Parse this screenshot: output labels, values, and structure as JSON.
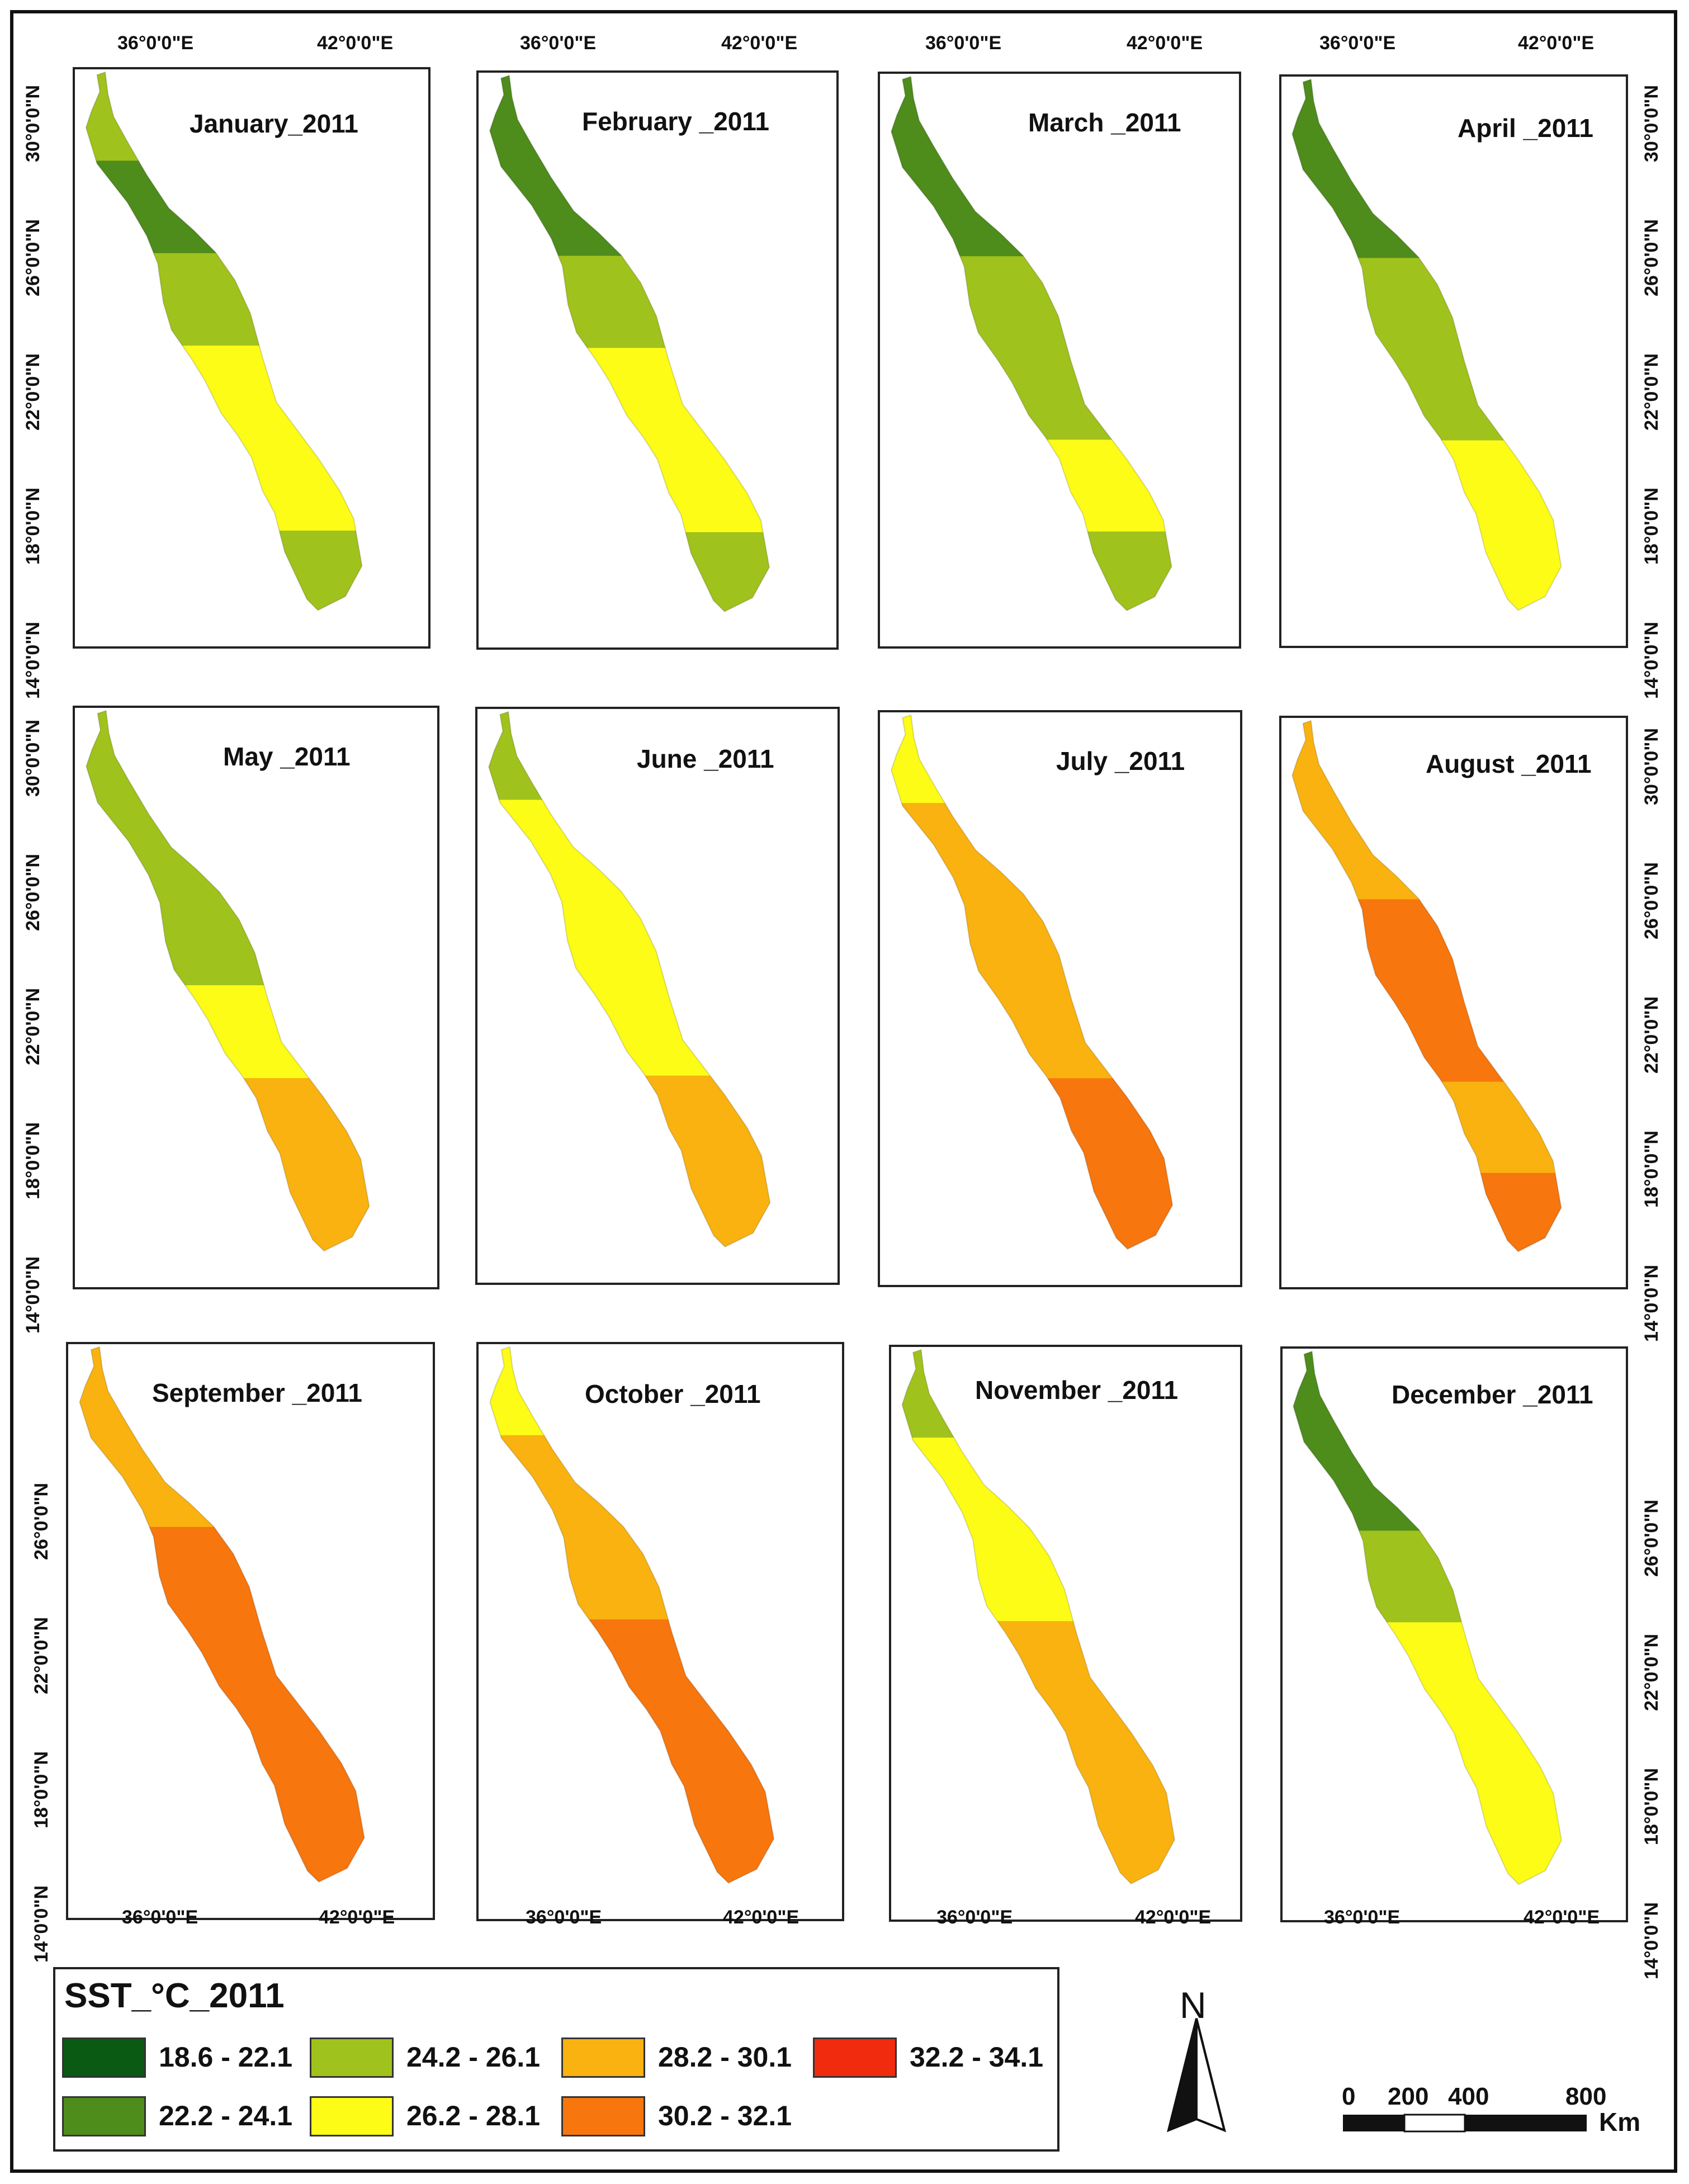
{
  "panels": [
    {
      "title": "January_2011"
    },
    {
      "title": "February _2011"
    },
    {
      "title": "March _2011"
    },
    {
      "title": "April _2011"
    },
    {
      "title": "May _2011"
    },
    {
      "title": "June _2011"
    },
    {
      "title": "July _2011"
    },
    {
      "title": "August _2011"
    },
    {
      "title": "September _2011"
    },
    {
      "title": "October _2011"
    },
    {
      "title": "November _2011"
    },
    {
      "title": "December _2011"
    }
  ],
  "axes": {
    "lon_labels": [
      "36°0'0\"E",
      "42°0'0\"E"
    ],
    "lat_labels_rows12": [
      "30°0'0\"N",
      "26°0'0\"N",
      "22°0'0\"N",
      "18°0'0\"N",
      "14°0'0\"N"
    ],
    "lat_labels_row3": [
      "26°0'0\"N",
      "22°0'0\"N",
      "18°0'0\"N",
      "14°0'0\"N"
    ]
  },
  "legend": {
    "title": "SST_°C_2011",
    "classes": [
      {
        "range": "18.6 - 22.1",
        "color": "#0b5a14"
      },
      {
        "range": "22.2 - 24.1",
        "color": "#4e8c1c"
      },
      {
        "range": "24.2 - 26.1",
        "color": "#a0c21c"
      },
      {
        "range": "26.2 - 28.1",
        "color": "#fcfc17"
      },
      {
        "range": "28.2 - 30.1",
        "color": "#f9b20f"
      },
      {
        "range": "30.2 - 32.1",
        "color": "#f7760e"
      },
      {
        "range": "32.2 - 34.1",
        "color": "#f02b0e"
      }
    ]
  },
  "north_arrow": {
    "label": "N"
  },
  "scale": {
    "ticks": [
      "0",
      "200",
      "400",
      "800"
    ],
    "unit": "Km"
  },
  "month_classes": [
    [
      2,
      1,
      2,
      3,
      3,
      2
    ],
    [
      1,
      1,
      2,
      3,
      3,
      2
    ],
    [
      1,
      1,
      2,
      2,
      3,
      2
    ],
    [
      1,
      1,
      2,
      2,
      3,
      3
    ],
    [
      2,
      2,
      2,
      3,
      4,
      4
    ],
    [
      2,
      3,
      3,
      3,
      4,
      4
    ],
    [
      3,
      4,
      4,
      4,
      5,
      5
    ],
    [
      4,
      4,
      5,
      5,
      4,
      5
    ],
    [
      4,
      4,
      5,
      5,
      5,
      5
    ],
    [
      3,
      4,
      4,
      5,
      5,
      5
    ],
    [
      2,
      3,
      3,
      4,
      4,
      4
    ],
    [
      1,
      1,
      2,
      3,
      3,
      3
    ]
  ]
}
